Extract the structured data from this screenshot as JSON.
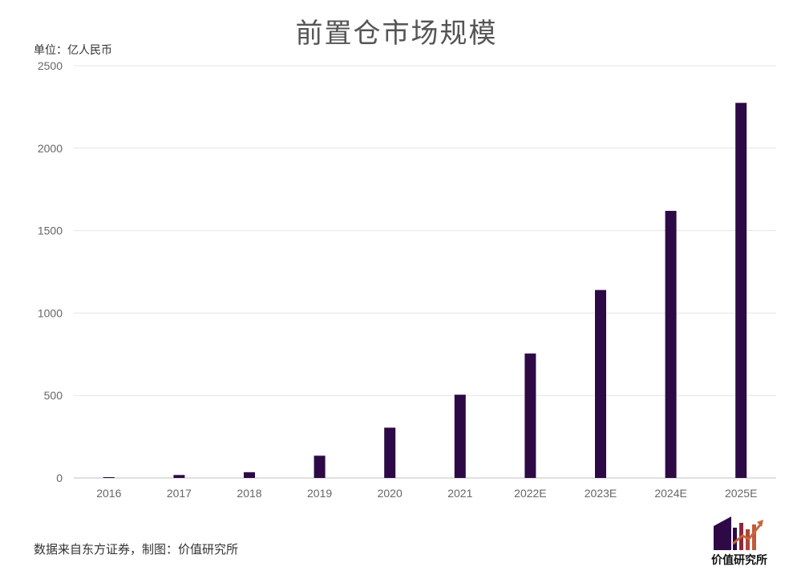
{
  "chart_data": {
    "type": "bar",
    "title": "前置仓市场规模",
    "unit_label": "单位：亿人民币",
    "categories": [
      "2016",
      "2017",
      "2018",
      "2019",
      "2020",
      "2021",
      "2022E",
      "2023E",
      "2024E",
      "2025E"
    ],
    "values": [
      5,
      18,
      35,
      135,
      305,
      505,
      755,
      1140,
      1620,
      2275
    ],
    "ylim": [
      0,
      2500
    ],
    "yticks": [
      0,
      500,
      1000,
      1500,
      2000,
      2500
    ],
    "grid": true,
    "bar_color": "#2d0a45"
  },
  "source_note": "数据来自东方证券，制图：价值研究所",
  "logo": {
    "text": "价值研究所",
    "icon": "building-chart-logo"
  }
}
